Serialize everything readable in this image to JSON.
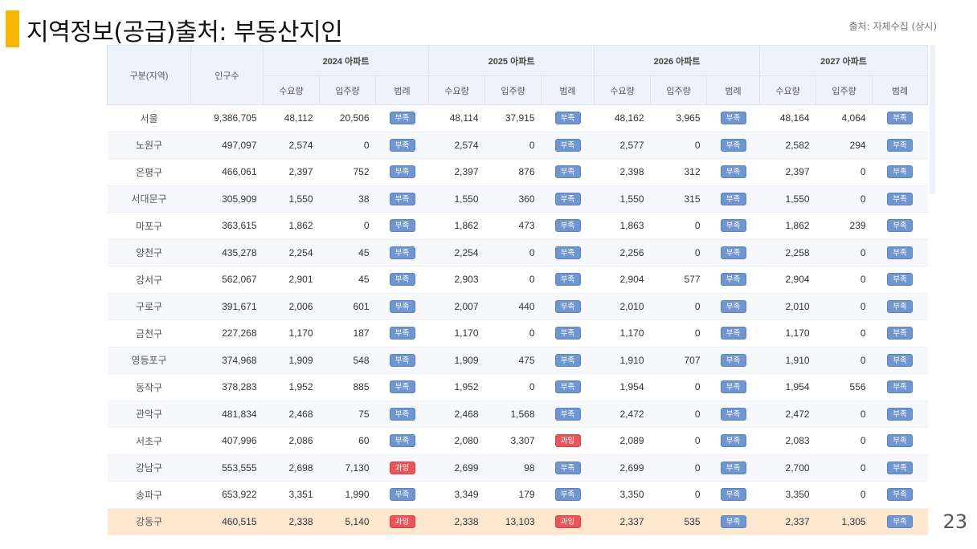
{
  "title": "지역정보(공급)출처: 부동산지인",
  "source_note": "출처: 자체수집 (상시)",
  "page_number": "23",
  "colors": {
    "accent": "#f7b500",
    "badge_short": "#6f96cf",
    "badge_over": "#e8565b",
    "highlight_row": "#fde8cf"
  },
  "table": {
    "headers": {
      "region": "구분(지역)",
      "population": "인구수",
      "years": [
        "2024 아파트",
        "2025 아파트",
        "2026 아파트",
        "2027 아파트"
      ],
      "sub": [
        "수요량",
        "입주량",
        "범례"
      ]
    },
    "rows": [
      {
        "name": "서울",
        "pop": "9,386,705",
        "y": [
          [
            "48,112",
            "20,506",
            "부족"
          ],
          [
            "48,114",
            "37,915",
            "부족"
          ],
          [
            "48,162",
            "3,965",
            "부족"
          ],
          [
            "48,164",
            "4,064",
            "부족"
          ]
        ]
      },
      {
        "name": "노원구",
        "pop": "497,097",
        "y": [
          [
            "2,574",
            "0",
            "부족"
          ],
          [
            "2,574",
            "0",
            "부족"
          ],
          [
            "2,577",
            "0",
            "부족"
          ],
          [
            "2,582",
            "294",
            "부족"
          ]
        ]
      },
      {
        "name": "은평구",
        "pop": "466,061",
        "y": [
          [
            "2,397",
            "752",
            "부족"
          ],
          [
            "2,397",
            "876",
            "부족"
          ],
          [
            "2,398",
            "312",
            "부족"
          ],
          [
            "2,397",
            "0",
            "부족"
          ]
        ]
      },
      {
        "name": "서대문구",
        "pop": "305,909",
        "y": [
          [
            "1,550",
            "38",
            "부족"
          ],
          [
            "1,550",
            "360",
            "부족"
          ],
          [
            "1,550",
            "315",
            "부족"
          ],
          [
            "1,550",
            "0",
            "부족"
          ]
        ]
      },
      {
        "name": "마포구",
        "pop": "363,615",
        "y": [
          [
            "1,862",
            "0",
            "부족"
          ],
          [
            "1,862",
            "473",
            "부족"
          ],
          [
            "1,863",
            "0",
            "부족"
          ],
          [
            "1,862",
            "239",
            "부족"
          ]
        ]
      },
      {
        "name": "양천구",
        "pop": "435,278",
        "y": [
          [
            "2,254",
            "45",
            "부족"
          ],
          [
            "2,254",
            "0",
            "부족"
          ],
          [
            "2,256",
            "0",
            "부족"
          ],
          [
            "2,258",
            "0",
            "부족"
          ]
        ]
      },
      {
        "name": "강서구",
        "pop": "562,067",
        "y": [
          [
            "2,901",
            "45",
            "부족"
          ],
          [
            "2,903",
            "0",
            "부족"
          ],
          [
            "2,904",
            "577",
            "부족"
          ],
          [
            "2,904",
            "0",
            "부족"
          ]
        ]
      },
      {
        "name": "구로구",
        "pop": "391,671",
        "y": [
          [
            "2,006",
            "601",
            "부족"
          ],
          [
            "2,007",
            "440",
            "부족"
          ],
          [
            "2,010",
            "0",
            "부족"
          ],
          [
            "2,010",
            "0",
            "부족"
          ]
        ]
      },
      {
        "name": "금천구",
        "pop": "227,268",
        "y": [
          [
            "1,170",
            "187",
            "부족"
          ],
          [
            "1,170",
            "0",
            "부족"
          ],
          [
            "1,170",
            "0",
            "부족"
          ],
          [
            "1,170",
            "0",
            "부족"
          ]
        ]
      },
      {
        "name": "영등포구",
        "pop": "374,968",
        "y": [
          [
            "1,909",
            "548",
            "부족"
          ],
          [
            "1,909",
            "475",
            "부족"
          ],
          [
            "1,910",
            "707",
            "부족"
          ],
          [
            "1,910",
            "0",
            "부족"
          ]
        ]
      },
      {
        "name": "동작구",
        "pop": "378,283",
        "y": [
          [
            "1,952",
            "885",
            "부족"
          ],
          [
            "1,952",
            "0",
            "부족"
          ],
          [
            "1,954",
            "0",
            "부족"
          ],
          [
            "1,954",
            "556",
            "부족"
          ]
        ]
      },
      {
        "name": "관악구",
        "pop": "481,834",
        "y": [
          [
            "2,468",
            "75",
            "부족"
          ],
          [
            "2,468",
            "1,568",
            "부족"
          ],
          [
            "2,472",
            "0",
            "부족"
          ],
          [
            "2,472",
            "0",
            "부족"
          ]
        ]
      },
      {
        "name": "서초구",
        "pop": "407,996",
        "y": [
          [
            "2,086",
            "60",
            "부족"
          ],
          [
            "2,080",
            "3,307",
            "과잉"
          ],
          [
            "2,089",
            "0",
            "부족"
          ],
          [
            "2,083",
            "0",
            "부족"
          ]
        ]
      },
      {
        "name": "강남구",
        "pop": "553,555",
        "y": [
          [
            "2,698",
            "7,130",
            "과잉"
          ],
          [
            "2,699",
            "98",
            "부족"
          ],
          [
            "2,699",
            "0",
            "부족"
          ],
          [
            "2,700",
            "0",
            "부족"
          ]
        ]
      },
      {
        "name": "송파구",
        "pop": "653,922",
        "y": [
          [
            "3,351",
            "1,990",
            "부족"
          ],
          [
            "3,349",
            "179",
            "부족"
          ],
          [
            "3,350",
            "0",
            "부족"
          ],
          [
            "3,350",
            "0",
            "부족"
          ]
        ]
      },
      {
        "name": "강동구",
        "pop": "460,515",
        "y": [
          [
            "2,338",
            "5,140",
            "과잉"
          ],
          [
            "2,338",
            "13,103",
            "과잉"
          ],
          [
            "2,337",
            "535",
            "부족"
          ],
          [
            "2,337",
            "1,305",
            "부족"
          ]
        ]
      }
    ]
  }
}
